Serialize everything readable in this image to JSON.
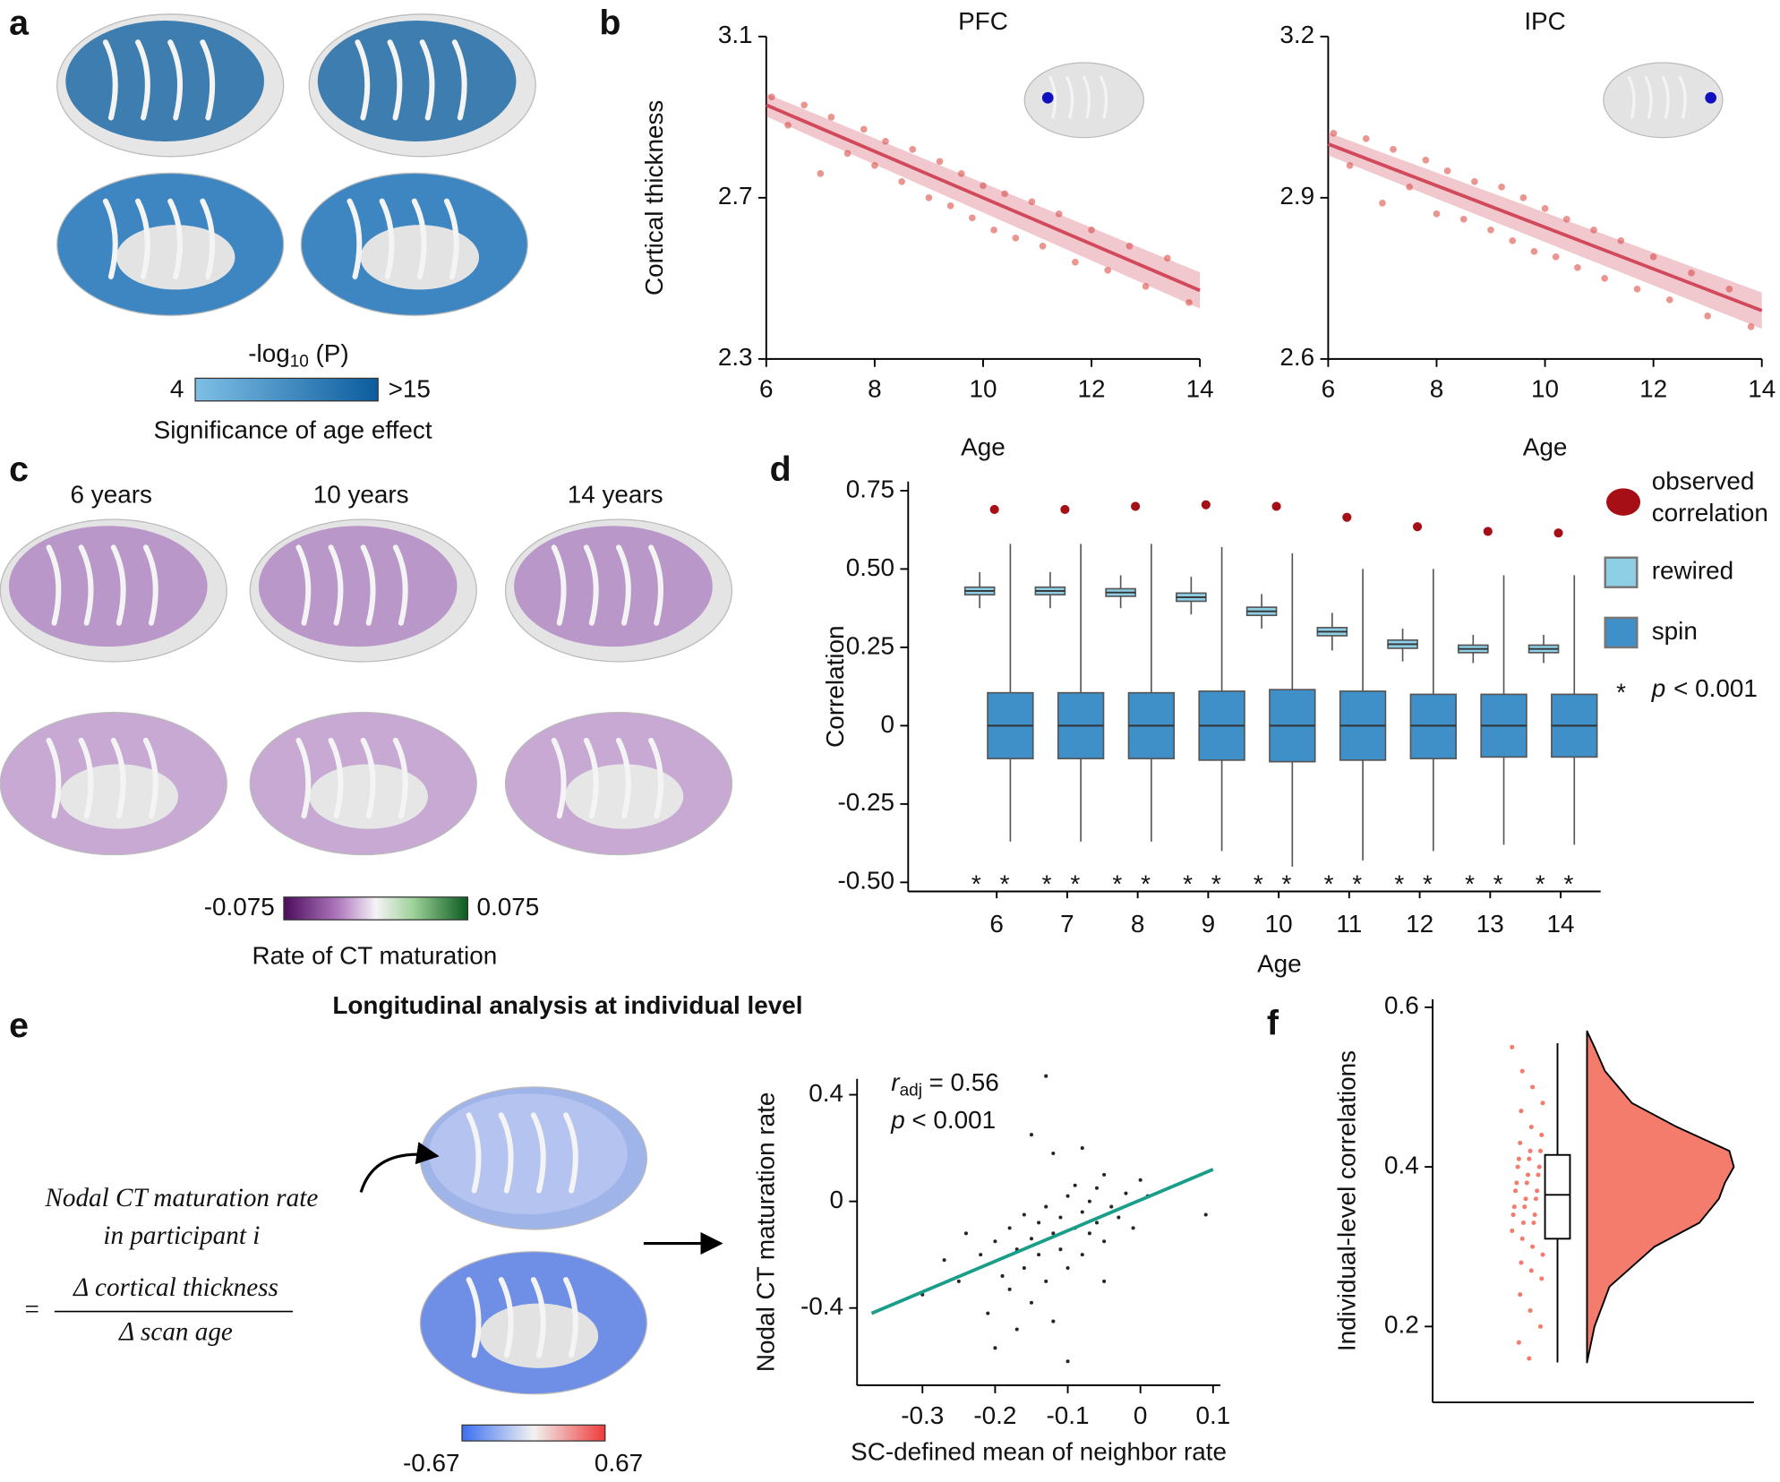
{
  "panel_labels": [
    "a",
    "b",
    "c",
    "d",
    "e",
    "f"
  ],
  "panel_a": {
    "colorbar": {
      "title": [
        "-log",
        "10",
        "(P)"
      ],
      "min": 4,
      "max": ">15",
      "caption": "Significance of age effect"
    }
  },
  "panel_c": {
    "ages": [
      "6 years",
      "10 years",
      "14 years"
    ],
    "colorbar": {
      "min": -0.075,
      "max": 0.075,
      "caption": "Rate of CT maturation"
    }
  },
  "panel_e": {
    "title": "Longitudinal analysis at individual level",
    "formula": {
      "lhs": [
        "Nodal CT  maturation rate",
        "in participant i"
      ],
      "equals": "=",
      "numerator": "Δ cortical thickness",
      "denominator": "Δ scan age"
    },
    "colorbar": {
      "min": -0.67,
      "max": 0.67
    }
  },
  "chart_data": [
    {
      "type": "scatter",
      "title": "PFC",
      "xlabel": "Age",
      "ylabel": "Cortical thickness",
      "xlim": [
        6,
        14
      ],
      "ylim": [
        2.3,
        3.1
      ],
      "xticks": [
        6,
        8,
        10,
        12,
        14
      ],
      "yticks": [
        2.3,
        2.7,
        3.1
      ],
      "color": "#e8827e",
      "fit": {
        "x": [
          6,
          14
        ],
        "y": [
          2.93,
          2.47
        ],
        "color": "#d1495b"
      },
      "x": [
        6.1,
        6.4,
        6.7,
        7.0,
        7.2,
        7.5,
        7.8,
        8.0,
        8.2,
        8.5,
        8.7,
        9.0,
        9.2,
        9.4,
        9.6,
        9.8,
        10.0,
        10.2,
        10.4,
        10.6,
        10.9,
        11.1,
        11.4,
        11.7,
        12.0,
        12.3,
        12.7,
        13.0,
        13.4,
        13.8
      ],
      "y": [
        2.95,
        2.88,
        2.93,
        2.76,
        2.9,
        2.81,
        2.87,
        2.78,
        2.84,
        2.74,
        2.82,
        2.7,
        2.79,
        2.68,
        2.76,
        2.65,
        2.73,
        2.62,
        2.71,
        2.6,
        2.69,
        2.58,
        2.66,
        2.54,
        2.62,
        2.52,
        2.58,
        2.48,
        2.55,
        2.44
      ]
    },
    {
      "type": "scatter",
      "title": "IPC",
      "xlabel": "Age",
      "xlim": [
        6,
        14
      ],
      "ylim": [
        2.6,
        3.2
      ],
      "xticks": [
        6,
        8,
        10,
        12,
        14
      ],
      "yticks": [
        2.6,
        2.9,
        3.2
      ],
      "color": "#e8827e",
      "fit": {
        "x": [
          6,
          14
        ],
        "y": [
          3.0,
          2.69
        ],
        "color": "#d1495b"
      },
      "x": [
        6.1,
        6.4,
        6.7,
        7.0,
        7.2,
        7.5,
        7.8,
        8.0,
        8.2,
        8.5,
        8.7,
        9.0,
        9.2,
        9.4,
        9.6,
        9.8,
        10.0,
        10.2,
        10.4,
        10.6,
        10.9,
        11.1,
        11.4,
        11.7,
        12.0,
        12.3,
        12.7,
        13.0,
        13.4,
        13.8
      ],
      "y": [
        3.02,
        2.96,
        3.01,
        2.89,
        2.99,
        2.92,
        2.97,
        2.87,
        2.95,
        2.86,
        2.93,
        2.84,
        2.92,
        2.82,
        2.9,
        2.8,
        2.88,
        2.79,
        2.86,
        2.77,
        2.84,
        2.75,
        2.82,
        2.73,
        2.79,
        2.71,
        2.76,
        2.68,
        2.73,
        2.66
      ]
    },
    {
      "type": "box",
      "xlabel": "Age",
      "ylabel": "Correlation",
      "categories": [
        6,
        7,
        8,
        9,
        10,
        11,
        12,
        13,
        14
      ],
      "ylim": [
        -0.5,
        0.75
      ],
      "yticks": [
        0.75,
        {
          "value": 0.5,
          "label": "0.50"
        },
        0.25,
        0,
        -0.25,
        {
          "value": -0.5,
          "label": "-0.50"
        }
      ],
      "series": [
        {
          "name": [
            "observed",
            "correlation"
          ],
          "color": "#a50f15",
          "values": [
            0.69,
            0.69,
            0.7,
            0.705,
            0.7,
            0.665,
            0.635,
            0.62,
            0.615
          ]
        },
        {
          "name": "rewired",
          "color": "#8ecfe6",
          "q1": [
            0.418,
            0.418,
            0.413,
            0.397,
            0.352,
            0.287,
            0.247,
            0.233,
            0.233
          ],
          "median": [
            0.43,
            0.43,
            0.425,
            0.41,
            0.365,
            0.3,
            0.26,
            0.245,
            0.245
          ],
          "q3": [
            0.442,
            0.442,
            0.437,
            0.423,
            0.378,
            0.313,
            0.273,
            0.257,
            0.257
          ],
          "whisker_low": [
            0.375,
            0.375,
            0.375,
            0.355,
            0.31,
            0.24,
            0.205,
            0.2,
            0.2
          ],
          "whisker_high": [
            0.49,
            0.49,
            0.48,
            0.475,
            0.42,
            0.36,
            0.31,
            0.29,
            0.29
          ]
        },
        {
          "name": "spin",
          "color": "#3f8fc8",
          "q1": [
            -0.105,
            -0.105,
            -0.105,
            -0.11,
            -0.115,
            -0.11,
            -0.105,
            -0.1,
            -0.1
          ],
          "median": [
            0,
            0,
            0,
            0,
            0,
            0,
            0,
            0,
            0
          ],
          "q3": [
            0.105,
            0.105,
            0.105,
            0.11,
            0.115,
            0.11,
            0.1,
            0.1,
            0.1
          ],
          "whisker_low": [
            -0.37,
            -0.37,
            -0.37,
            -0.4,
            -0.45,
            -0.43,
            -0.4,
            -0.38,
            -0.38
          ],
          "whisker_high": [
            0.58,
            0.58,
            0.58,
            0.57,
            0.55,
            0.5,
            0.5,
            0.48,
            0.48
          ]
        }
      ],
      "significance": {
        "symbol": "*",
        "label": [
          "p",
          "< 0.001"
        ]
      }
    },
    {
      "type": "scatter",
      "xlabel": "SC-defined mean of neighbor rate",
      "ylabel": "Nodal CT maturation rate",
      "xlim": [
        -0.39,
        0.11
      ],
      "ylim": [
        -0.69,
        0.46
      ],
      "xticks": [
        -0.3,
        -0.2,
        -0.1,
        0,
        0.1
      ],
      "yticks": [
        -0.4,
        0,
        0.4
      ],
      "color": "#000000",
      "fit": {
        "x": [
          -0.37,
          0.1
        ],
        "y": [
          -0.42,
          0.12
        ],
        "color": "#1a9e8a"
      },
      "annotations": [
        [
          "r",
          "adj",
          "= 0.56"
        ],
        [
          "p",
          "< 0.001"
        ]
      ],
      "x": [
        -0.3,
        -0.27,
        -0.25,
        -0.24,
        -0.22,
        -0.21,
        -0.2,
        -0.19,
        -0.18,
        -0.18,
        -0.17,
        -0.16,
        -0.16,
        -0.15,
        -0.15,
        -0.14,
        -0.14,
        -0.13,
        -0.13,
        -0.12,
        -0.12,
        -0.11,
        -0.11,
        -0.1,
        -0.1,
        -0.09,
        -0.09,
        -0.08,
        -0.08,
        -0.07,
        -0.07,
        -0.06,
        -0.06,
        -0.05,
        -0.05,
        -0.04,
        -0.03,
        -0.02,
        -0.01,
        0.0,
        0.01,
        -0.2,
        -0.15,
        -0.1,
        -0.12,
        -0.08,
        -0.17,
        -0.05,
        -0.13,
        0.09
      ],
      "y": [
        -0.35,
        -0.22,
        -0.3,
        -0.12,
        -0.2,
        -0.42,
        -0.15,
        -0.28,
        -0.1,
        -0.33,
        -0.18,
        -0.05,
        -0.25,
        -0.14,
        -0.38,
        -0.08,
        -0.2,
        -0.02,
        -0.3,
        -0.12,
        -0.45,
        -0.06,
        -0.18,
        0.02,
        -0.25,
        -0.1,
        0.06,
        -0.04,
        -0.2,
        0.0,
        -0.12,
        0.05,
        -0.08,
        -0.15,
        0.1,
        -0.02,
        -0.06,
        0.03,
        -0.1,
        0.08,
        0.02,
        -0.55,
        0.25,
        -0.6,
        0.18,
        0.2,
        -0.48,
        -0.3,
        0.47,
        -0.05
      ]
    },
    {
      "type": "raincloud",
      "ylabel": "Individual-level correlations",
      "ylim": [
        0.105,
        0.61
      ],
      "yticks": [
        0.2,
        0.4,
        0.6
      ],
      "color": "#f47c6c",
      "values": [
        0.55,
        0.52,
        0.5,
        0.48,
        0.47,
        0.45,
        0.44,
        0.43,
        0.42,
        0.42,
        0.41,
        0.41,
        0.4,
        0.4,
        0.39,
        0.39,
        0.38,
        0.38,
        0.37,
        0.37,
        0.36,
        0.36,
        0.35,
        0.35,
        0.34,
        0.34,
        0.33,
        0.33,
        0.32,
        0.31,
        0.3,
        0.29,
        0.28,
        0.27,
        0.26,
        0.24,
        0.22,
        0.2,
        0.18,
        0.16
      ],
      "box": {
        "whisker_low": 0.155,
        "q1": 0.31,
        "median": 0.365,
        "q3": 0.415,
        "whisker_high": 0.555
      },
      "violin": {
        "y": [
          0.155,
          0.2,
          0.25,
          0.3,
          0.33,
          0.36,
          0.38,
          0.4,
          0.42,
          0.45,
          0.48,
          0.52,
          0.55,
          0.57
        ],
        "density": [
          0,
          0.05,
          0.15,
          0.45,
          0.75,
          0.88,
          0.92,
          0.98,
          0.95,
          0.6,
          0.3,
          0.12,
          0.05,
          0
        ]
      }
    }
  ]
}
